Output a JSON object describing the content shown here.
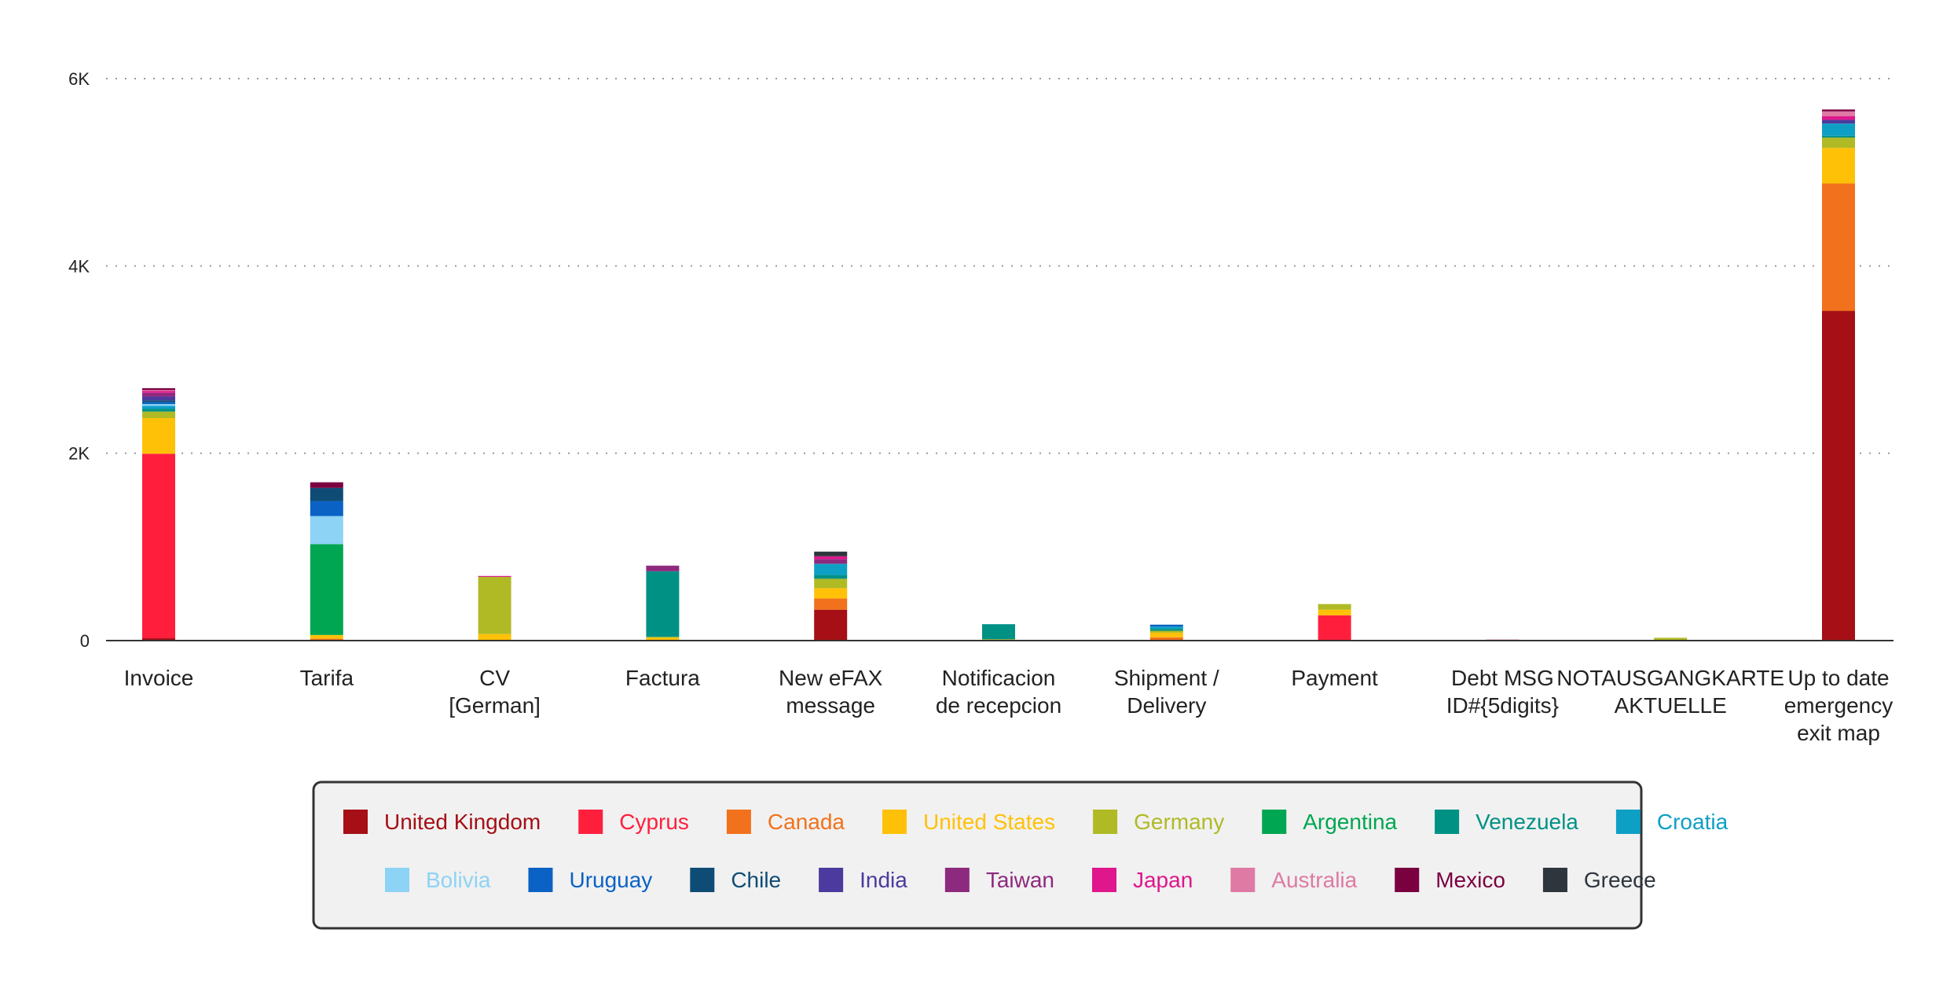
{
  "chart_data": {
    "type": "bar",
    "stacked": true,
    "categories": [
      "Invoice",
      "Tarifa",
      "CV\n[German]",
      "Factura",
      "New eFAX\nmessage",
      "Notificacion\nde recepcion",
      "Shipment /\nDelivery",
      "Payment",
      "Debt MSG\nID#{5digits}",
      "NOTAUSGANGKARTE\nAKTUELLE",
      "Up to date\nemergency\nexit map"
    ],
    "ylim": [
      0,
      6000
    ],
    "yticks": [
      {
        "value": 0,
        "label": "0"
      },
      {
        "value": 2000,
        "label": "2K"
      },
      {
        "value": 4000,
        "label": "4K"
      },
      {
        "value": 6000,
        "label": "6K"
      }
    ],
    "grid": true,
    "legend_position": "bottom",
    "series": [
      {
        "name": "United Kingdom",
        "color": "#A50F15",
        "values": [
          25,
          0,
          0,
          0,
          330,
          0,
          0,
          0,
          10,
          0,
          3520
        ]
      },
      {
        "name": "Cyprus",
        "color": "#FF1F3D",
        "values": [
          1970,
          0,
          0,
          0,
          0,
          0,
          0,
          270,
          0,
          0,
          0
        ]
      },
      {
        "name": "Canada",
        "color": "#F2711C",
        "values": [
          0,
          20,
          0,
          0,
          120,
          0,
          35,
          0,
          0,
          0,
          1360
        ]
      },
      {
        "name": "United States",
        "color": "#FFC107",
        "values": [
          380,
          40,
          70,
          30,
          110,
          0,
          50,
          60,
          0,
          0,
          380
        ]
      },
      {
        "name": "Germany",
        "color": "#AFBA25",
        "values": [
          70,
          0,
          610,
          10,
          100,
          15,
          20,
          60,
          0,
          30,
          110
        ]
      },
      {
        "name": "Argentina",
        "color": "#00A651",
        "values": [
          0,
          970,
          0,
          0,
          0,
          0,
          0,
          0,
          0,
          0,
          0
        ]
      },
      {
        "name": "Venezuela",
        "color": "#009185",
        "values": [
          30,
          0,
          0,
          700,
          40,
          160,
          20,
          0,
          0,
          0,
          20
        ]
      },
      {
        "name": "Croatia",
        "color": "#0E9FC5",
        "values": [
          30,
          0,
          0,
          0,
          120,
          0,
          25,
          0,
          0,
          0,
          130
        ]
      },
      {
        "name": "Bolivia",
        "color": "#8DD3F5",
        "values": [
          20,
          300,
          0,
          0,
          0,
          0,
          0,
          0,
          0,
          0,
          0
        ]
      },
      {
        "name": "Uruguay",
        "color": "#0A62C4",
        "values": [
          20,
          160,
          0,
          0,
          0,
          0,
          20,
          0,
          0,
          0,
          0
        ]
      },
      {
        "name": "Chile",
        "color": "#0F4C75",
        "values": [
          20,
          140,
          0,
          0,
          0,
          0,
          0,
          0,
          0,
          0,
          0
        ]
      },
      {
        "name": "India",
        "color": "#4C3A9E",
        "values": [
          40,
          0,
          0,
          0,
          0,
          0,
          0,
          0,
          0,
          0,
          40
        ]
      },
      {
        "name": "Taiwan",
        "color": "#8E2A7E",
        "values": [
          40,
          0,
          0,
          60,
          50,
          0,
          0,
          0,
          0,
          0,
          0
        ]
      },
      {
        "name": "Japan",
        "color": "#E0168C",
        "values": [
          20,
          0,
          10,
          0,
          30,
          0,
          0,
          0,
          0,
          0,
          40
        ]
      },
      {
        "name": "Australia",
        "color": "#DE7AA3",
        "values": [
          10,
          0,
          0,
          0,
          0,
          0,
          0,
          0,
          0,
          0,
          50
        ]
      },
      {
        "name": "Mexico",
        "color": "#7B0040",
        "values": [
          20,
          60,
          0,
          0,
          0,
          0,
          0,
          0,
          0,
          0,
          20
        ]
      },
      {
        "name": "Greece",
        "color": "#2E353D",
        "values": [
          0,
          0,
          0,
          0,
          50,
          0,
          0,
          0,
          0,
          0,
          0
        ]
      }
    ]
  }
}
